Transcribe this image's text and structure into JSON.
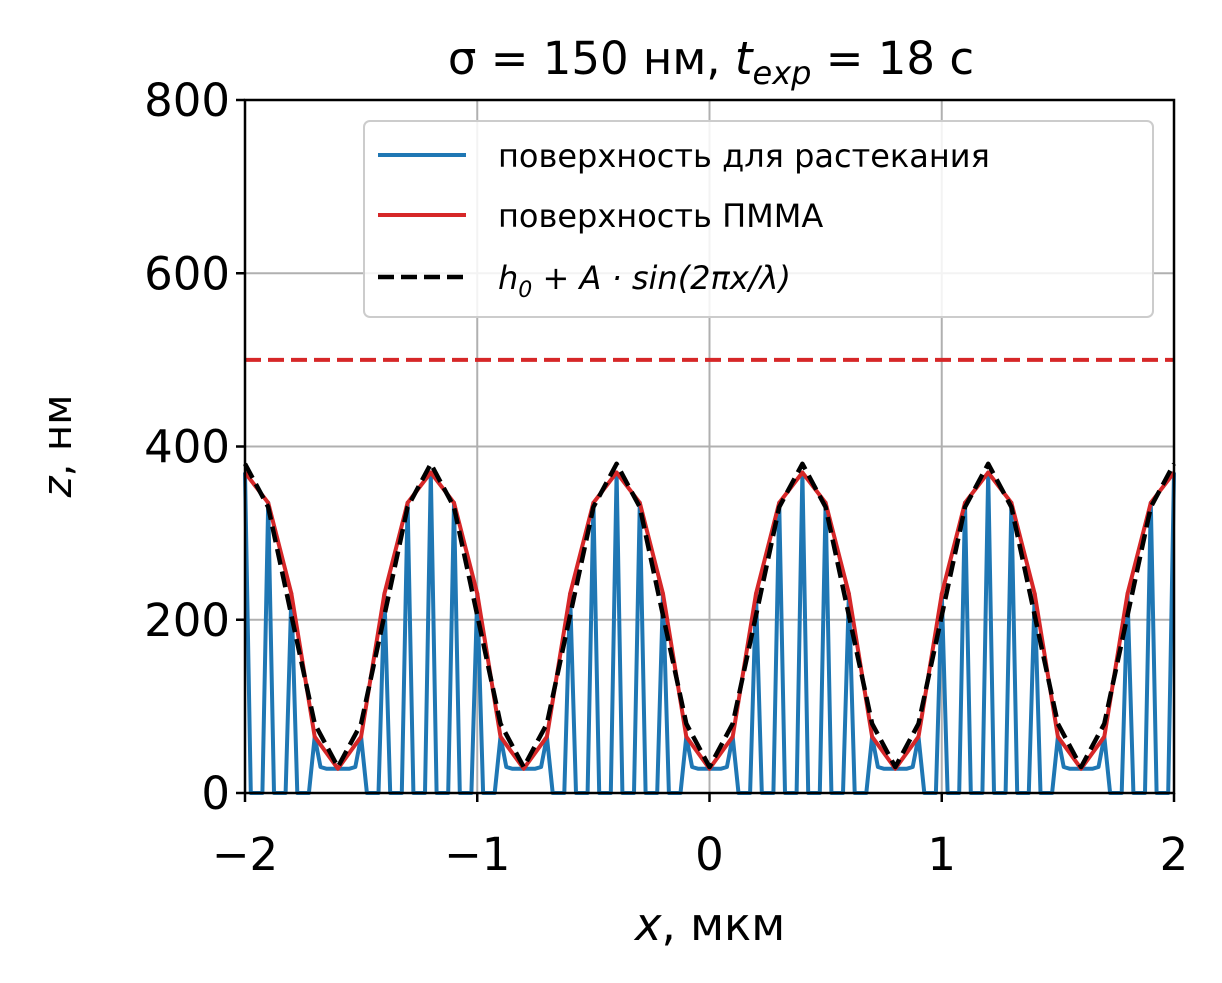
{
  "colors": {
    "blue": "#1f77b4",
    "red": "#d62728",
    "black": "#000000",
    "grid": "#b0b0b0",
    "legend_border": "#cccccc"
  },
  "chart_data": {
    "type": "line",
    "title": "σ = 150 нм, t_exp = 18 с",
    "title_parts": {
      "pre": "σ = 150 нм, ",
      "t": "t",
      "sub": "exp",
      "post": " = 18 с"
    },
    "xlabel": "x, мкм",
    "xlabel_parts": {
      "var": "x",
      "unit": ", мкм"
    },
    "ylabel": "z, нм",
    "ylabel_parts": {
      "var": "z",
      "unit": ", нм"
    },
    "xlim": [
      -2,
      2
    ],
    "ylim": [
      0,
      800
    ],
    "xticks": [
      -2,
      -1,
      0,
      1,
      2
    ],
    "xtick_labels": [
      "−2",
      "−1",
      "0",
      "1",
      "2"
    ],
    "yticks": [
      0,
      200,
      400,
      600,
      800
    ],
    "ytick_labels": [
      "0",
      "200",
      "400",
      "600",
      "800"
    ],
    "grid": true,
    "legend_position": "top-right",
    "legend": [
      {
        "label": "поверхность для растекания",
        "color": "#1f77b4",
        "dash": "solid"
      },
      {
        "label": "поверхность ПММА",
        "color": "#d62728",
        "dash": "solid"
      },
      {
        "label": "h0 + A · sin(2πx/λ)",
        "color": "#000000",
        "dash": "dashed",
        "parts": {
          "h": "h",
          "sub": "0",
          "rest": " + A · sin(2πx/λ)"
        }
      }
    ],
    "hline": {
      "y": 500,
      "color": "#d62728",
      "dash": "dashed"
    },
    "series": [
      {
        "name": "поверхность ПММА",
        "color": "#d62728",
        "x": [
          -2.0,
          -1.9,
          -1.8,
          -1.7,
          -1.6,
          -1.5,
          -1.4,
          -1.3,
          -1.2,
          -1.1,
          -1.0,
          -0.9,
          -0.8,
          -0.7,
          -0.6,
          -0.5,
          -0.4,
          -0.3,
          -0.2,
          -0.1,
          0.0,
          0.1,
          0.2,
          0.3,
          0.4,
          0.5,
          0.6,
          0.7,
          0.8,
          0.9,
          1.0,
          1.1,
          1.2,
          1.3,
          1.4,
          1.5,
          1.6,
          1.7,
          1.8,
          1.9,
          2.0
        ],
        "y": [
          370,
          335,
          230,
          65,
          28,
          65,
          230,
          335,
          370,
          335,
          230,
          65,
          28,
          65,
          230,
          335,
          370,
          335,
          230,
          65,
          28,
          65,
          230,
          335,
          370,
          335,
          230,
          65,
          28,
          65,
          230,
          335,
          370,
          335,
          230,
          65,
          28,
          65,
          230,
          335,
          370
        ]
      },
      {
        "name": "h0 + A · sin(2πx/λ)",
        "color": "#000000",
        "x": [
          -2.0,
          -1.9,
          -1.8,
          -1.7,
          -1.6,
          -1.5,
          -1.4,
          -1.3,
          -1.2,
          -1.1,
          -1.0,
          -0.9,
          -0.8,
          -0.7,
          -0.6,
          -0.5,
          -0.4,
          -0.3,
          -0.2,
          -0.1,
          0.0,
          0.1,
          0.2,
          0.3,
          0.4,
          0.5,
          0.6,
          0.7,
          0.8,
          0.9,
          1.0,
          1.1,
          1.2,
          1.3,
          1.4,
          1.5,
          1.6,
          1.7,
          1.8,
          1.9,
          2.0
        ],
        "y": [
          380,
          330,
          205,
          80,
          30,
          80,
          205,
          330,
          380,
          330,
          205,
          80,
          30,
          80,
          205,
          330,
          380,
          330,
          205,
          80,
          30,
          80,
          205,
          330,
          380,
          330,
          205,
          80,
          30,
          80,
          205,
          330,
          380,
          330,
          205,
          80,
          30,
          80,
          205,
          330,
          380
        ]
      },
      {
        "name": "поверхность для растекания",
        "color": "#1f77b4",
        "x": [
          -2.0,
          -1.975,
          -1.925,
          -1.9,
          -1.875,
          -1.825,
          -1.8,
          -1.775,
          -1.725,
          -1.7,
          -1.675,
          -1.65,
          -1.6,
          -1.55,
          -1.525,
          -1.5,
          -1.475,
          -1.425,
          -1.4,
          -1.375,
          -1.325,
          -1.3,
          -1.275,
          -1.225,
          -1.2,
          -1.175,
          -1.125,
          -1.1,
          -1.075,
          -1.025,
          -1.0,
          -0.975,
          -0.925,
          -0.9,
          -0.875,
          -0.85,
          -0.8,
          -0.75,
          -0.725,
          -0.7,
          -0.675,
          -0.625,
          -0.6,
          -0.575,
          -0.525,
          -0.5,
          -0.475,
          -0.425,
          -0.4,
          -0.375,
          -0.325,
          -0.3,
          -0.275,
          -0.225,
          -0.2,
          -0.175,
          -0.125,
          -0.1,
          -0.075,
          -0.05,
          0.0,
          0.05,
          0.075,
          0.1,
          0.125,
          0.175,
          0.2,
          0.225,
          0.275,
          0.3,
          0.325,
          0.375,
          0.4,
          0.425,
          0.475,
          0.5,
          0.525,
          0.575,
          0.6,
          0.625,
          0.675,
          0.7,
          0.725,
          0.75,
          0.8,
          0.85,
          0.875,
          0.9,
          0.925,
          0.975,
          1.0,
          1.025,
          1.075,
          1.1,
          1.125,
          1.175,
          1.2,
          1.225,
          1.275,
          1.3,
          1.325,
          1.375,
          1.4,
          1.425,
          1.475,
          1.5,
          1.525,
          1.55,
          1.6,
          1.65,
          1.675,
          1.7,
          1.725,
          1.775,
          1.8,
          1.825,
          1.875,
          1.9,
          1.925,
          1.975,
          2.0
        ],
        "y": [
          370,
          0,
          0,
          335,
          0,
          0,
          230,
          0,
          0,
          65,
          30,
          28,
          28,
          28,
          30,
          65,
          0,
          0,
          230,
          0,
          0,
          335,
          0,
          0,
          370,
          0,
          0,
          335,
          0,
          0,
          230,
          0,
          0,
          65,
          30,
          28,
          28,
          28,
          30,
          65,
          0,
          0,
          230,
          0,
          0,
          335,
          0,
          0,
          370,
          0,
          0,
          335,
          0,
          0,
          230,
          0,
          0,
          65,
          30,
          28,
          28,
          28,
          30,
          65,
          0,
          0,
          230,
          0,
          0,
          335,
          0,
          0,
          370,
          0,
          0,
          335,
          0,
          0,
          230,
          0,
          0,
          65,
          30,
          28,
          28,
          28,
          30,
          65,
          0,
          0,
          230,
          0,
          0,
          335,
          0,
          0,
          370,
          0,
          0,
          335,
          0,
          0,
          230,
          0,
          0,
          65,
          30,
          28,
          28,
          28,
          30,
          65,
          0,
          0,
          230,
          0,
          0,
          335,
          0,
          0,
          370
        ]
      }
    ]
  }
}
